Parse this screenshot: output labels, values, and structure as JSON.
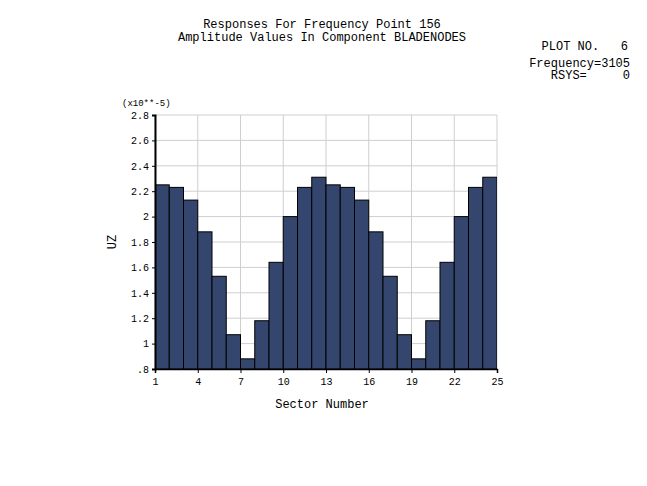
{
  "chart_data": {
    "type": "histogram",
    "title": "Responses For Frequency Point 156",
    "subtitle": "Amplitude Values In Component BLADENODES",
    "annotations": [
      "PLOT NO.   6",
      "Frequency=3105",
      "RSYS=     0",
      "(x10**-5)"
    ],
    "x_label": "Sector Number",
    "y_label": "UZ",
    "bins": [
      1,
      2,
      3,
      4,
      5,
      6,
      7,
      8,
      9,
      10,
      11,
      12,
      13,
      14,
      15,
      16,
      17,
      18,
      19,
      20,
      21,
      22,
      23,
      24,
      25
    ],
    "values": [
      2.25,
      2.23,
      2.13,
      1.88,
      1.53,
      1.07,
      0.88,
      1.18,
      1.64,
      2.0,
      2.23,
      2.31,
      2.25,
      2.23,
      2.13,
      1.88,
      1.53,
      1.07,
      0.88,
      1.18,
      1.64,
      2.0,
      2.23,
      2.31
    ],
    "color": "#35466e",
    "xlim": [
      1,
      25
    ],
    "xticks": [
      1,
      4,
      7,
      10,
      13,
      16,
      19,
      22,
      25
    ],
    "ylim": [
      0.8,
      2.8
    ],
    "yticks": [
      {
        "value": 0.8,
        "label": ".8"
      },
      1,
      1.2,
      1.4,
      1.6,
      1.8,
      2,
      2.2,
      2.4,
      2.6,
      2.8
    ],
    "grid": true
  }
}
